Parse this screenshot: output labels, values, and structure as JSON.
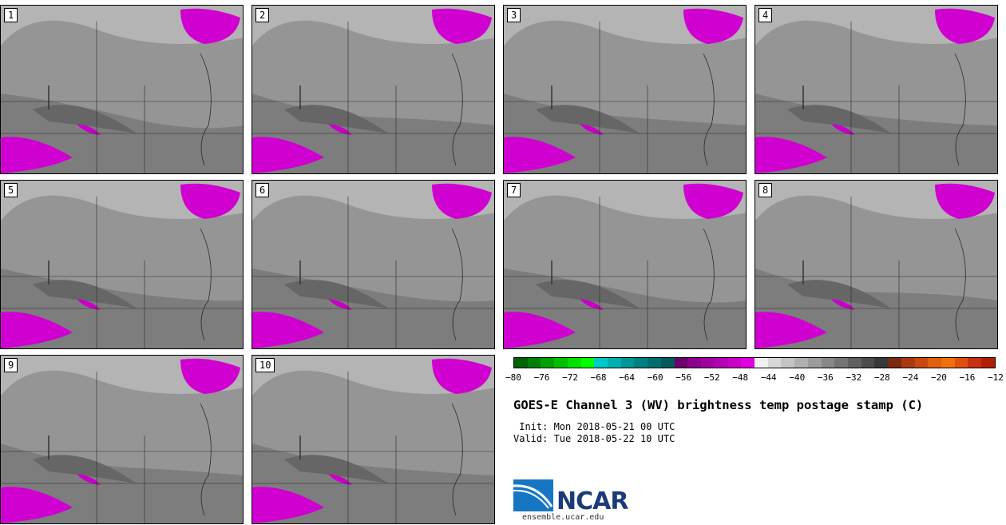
{
  "panels": [
    {
      "label": "1"
    },
    {
      "label": "2"
    },
    {
      "label": "3"
    },
    {
      "label": "4"
    },
    {
      "label": "5"
    },
    {
      "label": "6"
    },
    {
      "label": "7"
    },
    {
      "label": "8"
    },
    {
      "label": "9"
    },
    {
      "label": "10"
    }
  ],
  "colorbar": {
    "colors": [
      "#006400",
      "#008000",
      "#00a000",
      "#00c000",
      "#00e000",
      "#00ff00",
      "#00c8c8",
      "#00b0b0",
      "#009696",
      "#008080",
      "#006e6e",
      "#005a5a",
      "#6e006e",
      "#8c008c",
      "#a000a0",
      "#b400b4",
      "#c800c8",
      "#e000e0",
      "#f0f0f0",
      "#d8d8d8",
      "#c4c4c4",
      "#b0b0b0",
      "#9c9c9c",
      "#888888",
      "#747474",
      "#606060",
      "#4c4c4c",
      "#383838",
      "#7a2a10",
      "#a83a10",
      "#c84810",
      "#e06010",
      "#f07010",
      "#e05010",
      "#c83010",
      "#b02000"
    ],
    "tick_labels": [
      "−80",
      "−76",
      "−72",
      "−68",
      "−64",
      "−60",
      "−56",
      "−52",
      "−48",
      "−44",
      "−40",
      "−36",
      "−32",
      "−28",
      "−24",
      "−20",
      "−16",
      "−12"
    ]
  },
  "title": "GOES-E Channel 3 (WV) brightness temp postage stamp (C)",
  "init_line": " Init: Mon 2018-05-21 00 UTC",
  "valid_line": "Valid: Tue 2018-05-22 10 UTC",
  "logo": {
    "text": "NCAR",
    "url": "ensemble.ucar.edu"
  }
}
